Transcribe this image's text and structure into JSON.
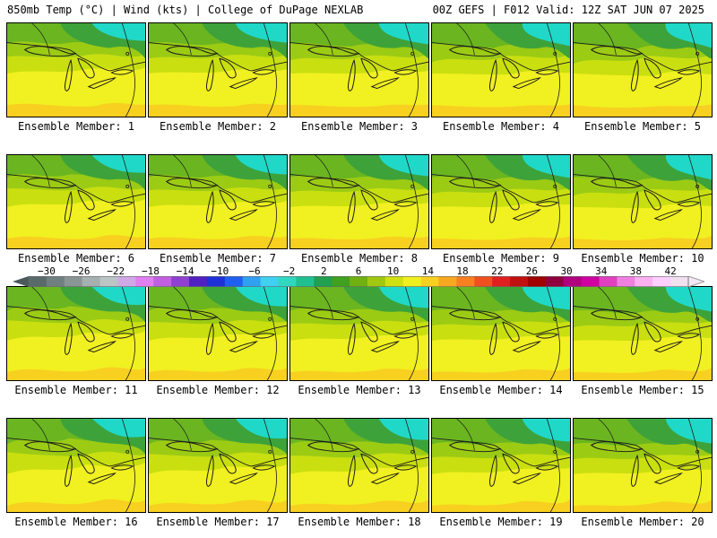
{
  "header": {
    "left": "850mb Temp (°C) | Wind (kts) | College of DuPage NEXLAB",
    "right": "00Z GEFS | F012 Valid: 12Z SAT JUN 07 2025"
  },
  "members": [
    {
      "label": "Ensemble Member: 1"
    },
    {
      "label": "Ensemble Member: 2"
    },
    {
      "label": "Ensemble Member: 3"
    },
    {
      "label": "Ensemble Member: 4"
    },
    {
      "label": "Ensemble Member: 5"
    },
    {
      "label": "Ensemble Member: 6"
    },
    {
      "label": "Ensemble Member: 7"
    },
    {
      "label": "Ensemble Member: 8"
    },
    {
      "label": "Ensemble Member: 9"
    },
    {
      "label": "Ensemble Member: 10"
    },
    {
      "label": "Ensemble Member: 11"
    },
    {
      "label": "Ensemble Member: 12"
    },
    {
      "label": "Ensemble Member: 13"
    },
    {
      "label": "Ensemble Member: 14"
    },
    {
      "label": "Ensemble Member: 15"
    },
    {
      "label": "Ensemble Member: 16"
    },
    {
      "label": "Ensemble Member: 17"
    },
    {
      "label": "Ensemble Member: 18"
    },
    {
      "label": "Ensemble Member: 19"
    },
    {
      "label": "Ensemble Member: 20"
    }
  ],
  "colorbar": {
    "ticks": [
      "-30",
      "-26",
      "-22",
      "-18",
      "-14",
      "-10",
      "-6",
      "-2",
      "2",
      "6",
      "10",
      "14",
      "18",
      "22",
      "26",
      "30",
      "34",
      "38",
      "42"
    ],
    "colors": [
      "#5a6a6a",
      "#707f7f",
      "#8a9595",
      "#a6b0b0",
      "#bcc5c5",
      "#d0a8e8",
      "#e080f0",
      "#c060e0",
      "#9040d0",
      "#5020c0",
      "#2030d8",
      "#2060f0",
      "#30a0f0",
      "#40d0f0",
      "#30d8c0",
      "#20c090",
      "#20a050",
      "#40a020",
      "#70b010",
      "#a0c810",
      "#d0e010",
      "#f0f020",
      "#f8d020",
      "#f8a820",
      "#f88020",
      "#f05020",
      "#e02020",
      "#c01010",
      "#a00000",
      "#900040",
      "#b00080",
      "#d000a0",
      "#e040c0",
      "#f080e0",
      "#ffb0f0",
      "#ffd0ff",
      "#f0e0f0"
    ],
    "scale_colors": {
      "cyan": "#20d8c8",
      "dark_green": "#3da23a",
      "green": "#6ab520",
      "light_green": "#9ccb14",
      "yellow_green": "#c9df10",
      "yellow": "#f1f020",
      "gold": "#f8d020"
    }
  }
}
